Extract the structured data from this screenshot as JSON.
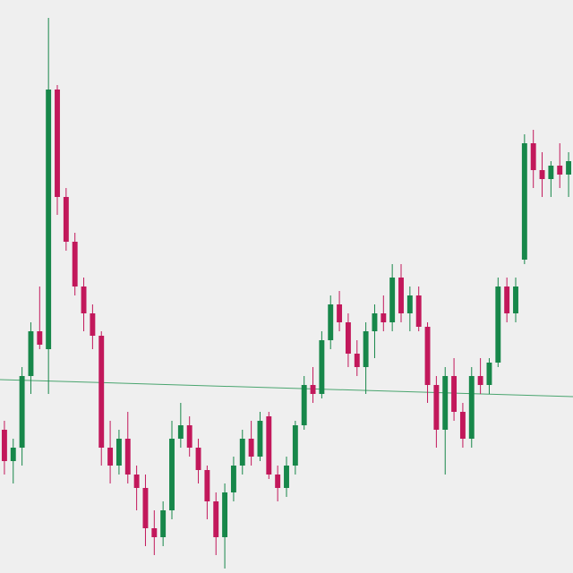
{
  "chart_data": {
    "type": "candlestick",
    "up_color": "#17874a",
    "down_color": "#c2185b",
    "ylim": [
      0,
      640
    ],
    "open": [
      160,
      125,
      140,
      220,
      270,
      250,
      540,
      420,
      370,
      320,
      290,
      265,
      140,
      120,
      150,
      110,
      95,
      50,
      40,
      70,
      150,
      165,
      140,
      115,
      80,
      40,
      90,
      120,
      150,
      130,
      175,
      110,
      95,
      120,
      165,
      210,
      200,
      260,
      300,
      280,
      245,
      230,
      270,
      290,
      280,
      330,
      290,
      310,
      275,
      210,
      160,
      220,
      180,
      150,
      220,
      210,
      235,
      320,
      290,
      350,
      480,
      450,
      440,
      455,
      445
    ],
    "high": [
      170,
      150,
      230,
      280,
      320,
      620,
      545,
      430,
      380,
      330,
      300,
      270,
      170,
      160,
      180,
      120,
      110,
      70,
      80,
      170,
      190,
      175,
      150,
      120,
      90,
      100,
      130,
      160,
      170,
      180,
      180,
      120,
      130,
      170,
      220,
      230,
      270,
      310,
      315,
      290,
      260,
      280,
      300,
      310,
      345,
      345,
      320,
      320,
      280,
      220,
      230,
      240,
      190,
      230,
      240,
      240,
      330,
      330,
      330,
      490,
      495,
      470,
      460,
      480,
      470
    ],
    "low": [
      110,
      100,
      120,
      200,
      250,
      200,
      400,
      360,
      310,
      270,
      250,
      120,
      100,
      110,
      100,
      70,
      30,
      20,
      30,
      60,
      140,
      130,
      100,
      60,
      20,
      5,
      80,
      110,
      120,
      125,
      105,
      80,
      85,
      110,
      160,
      190,
      195,
      250,
      270,
      230,
      220,
      200,
      240,
      270,
      270,
      280,
      270,
      270,
      190,
      140,
      110,
      170,
      140,
      140,
      200,
      200,
      230,
      280,
      280,
      345,
      430,
      420,
      420,
      430,
      420
    ],
    "close": [
      125,
      140,
      220,
      270,
      255,
      540,
      420,
      370,
      320,
      290,
      265,
      140,
      120,
      150,
      110,
      95,
      50,
      40,
      70,
      150,
      165,
      140,
      115,
      80,
      40,
      90,
      120,
      150,
      130,
      170,
      110,
      95,
      120,
      165,
      210,
      200,
      260,
      300,
      280,
      245,
      230,
      270,
      290,
      280,
      330,
      290,
      310,
      275,
      210,
      160,
      220,
      180,
      150,
      220,
      210,
      235,
      320,
      290,
      320,
      480,
      450,
      440,
      455,
      445,
      460
    ]
  }
}
